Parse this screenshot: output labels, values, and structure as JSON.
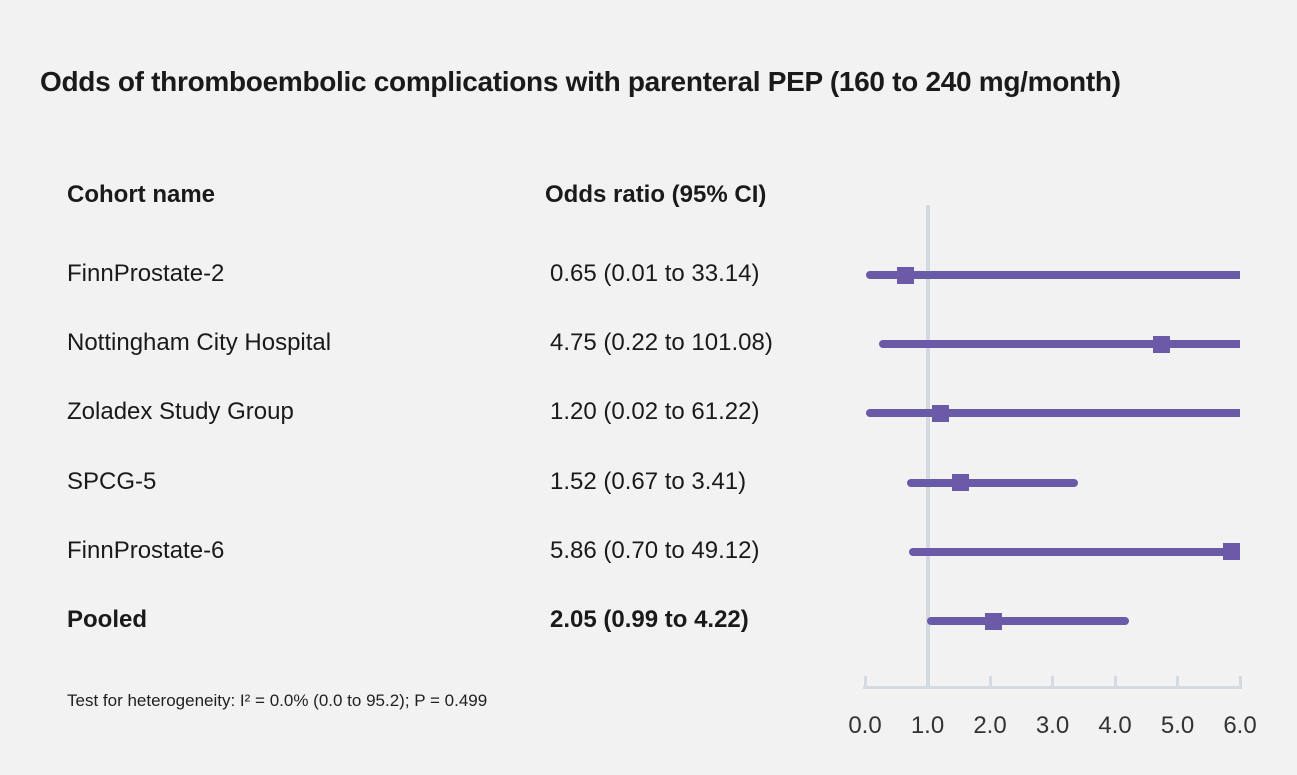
{
  "title": "Odds of thromboembolic complications with parenteral PEP (160 to 240 mg/month)",
  "columns": {
    "cohort": "Cohort name",
    "odds_ratio": "Odds ratio (95% CI)"
  },
  "footnote": "Test for heterogeneity: I² = 0.0% (0.0 to 95.2); P = 0.499",
  "colors": {
    "background": "#f2f2f2",
    "marker": "#6b5aa7",
    "reference_line": "#d5dae1",
    "axis_line": "#d5dae1",
    "text": "#1a1a1a",
    "axis_label_text": "#333333"
  },
  "chart_data": {
    "type": "forest",
    "title": "Odds of thromboembolic complications with parenteral PEP (160 to 240 mg/month)",
    "xlabel": "Odds ratio",
    "x_axis": {
      "min": 0,
      "max": 6,
      "tick_values": [
        0.0,
        1.0,
        2.0,
        3.0,
        4.0,
        5.0,
        6.0
      ],
      "tick_labels": [
        "0.0",
        "1.0",
        "2.0",
        "3.0",
        "4.0",
        "5.0",
        "6.0"
      ],
      "reference_value": 1.0
    },
    "rows": [
      {
        "label": "FinnProstate-2",
        "or_text": "0.65 (0.01 to 33.14)",
        "or": 0.65,
        "lo": 0.01,
        "hi": 33.14,
        "pooled": false
      },
      {
        "label": "Nottingham City Hospital",
        "or_text": "4.75 (0.22 to 101.08)",
        "or": 4.75,
        "lo": 0.22,
        "hi": 101.08,
        "pooled": false
      },
      {
        "label": "Zoladex Study Group",
        "or_text": "1.20 (0.02 to 61.22)",
        "or": 1.2,
        "lo": 0.02,
        "hi": 61.22,
        "pooled": false
      },
      {
        "label": "SPCG-5",
        "or_text": "1.52 (0.67 to 3.41)",
        "or": 1.52,
        "lo": 0.67,
        "hi": 3.41,
        "pooled": false
      },
      {
        "label": "FinnProstate-6",
        "or_text": "5.86 (0.70 to 49.12)",
        "or": 5.86,
        "lo": 0.7,
        "hi": 49.12,
        "pooled": false
      },
      {
        "label": "Pooled",
        "or_text": "2.05 (0.99 to 4.22)",
        "or": 2.05,
        "lo": 0.99,
        "hi": 4.22,
        "pooled": true
      }
    ]
  }
}
